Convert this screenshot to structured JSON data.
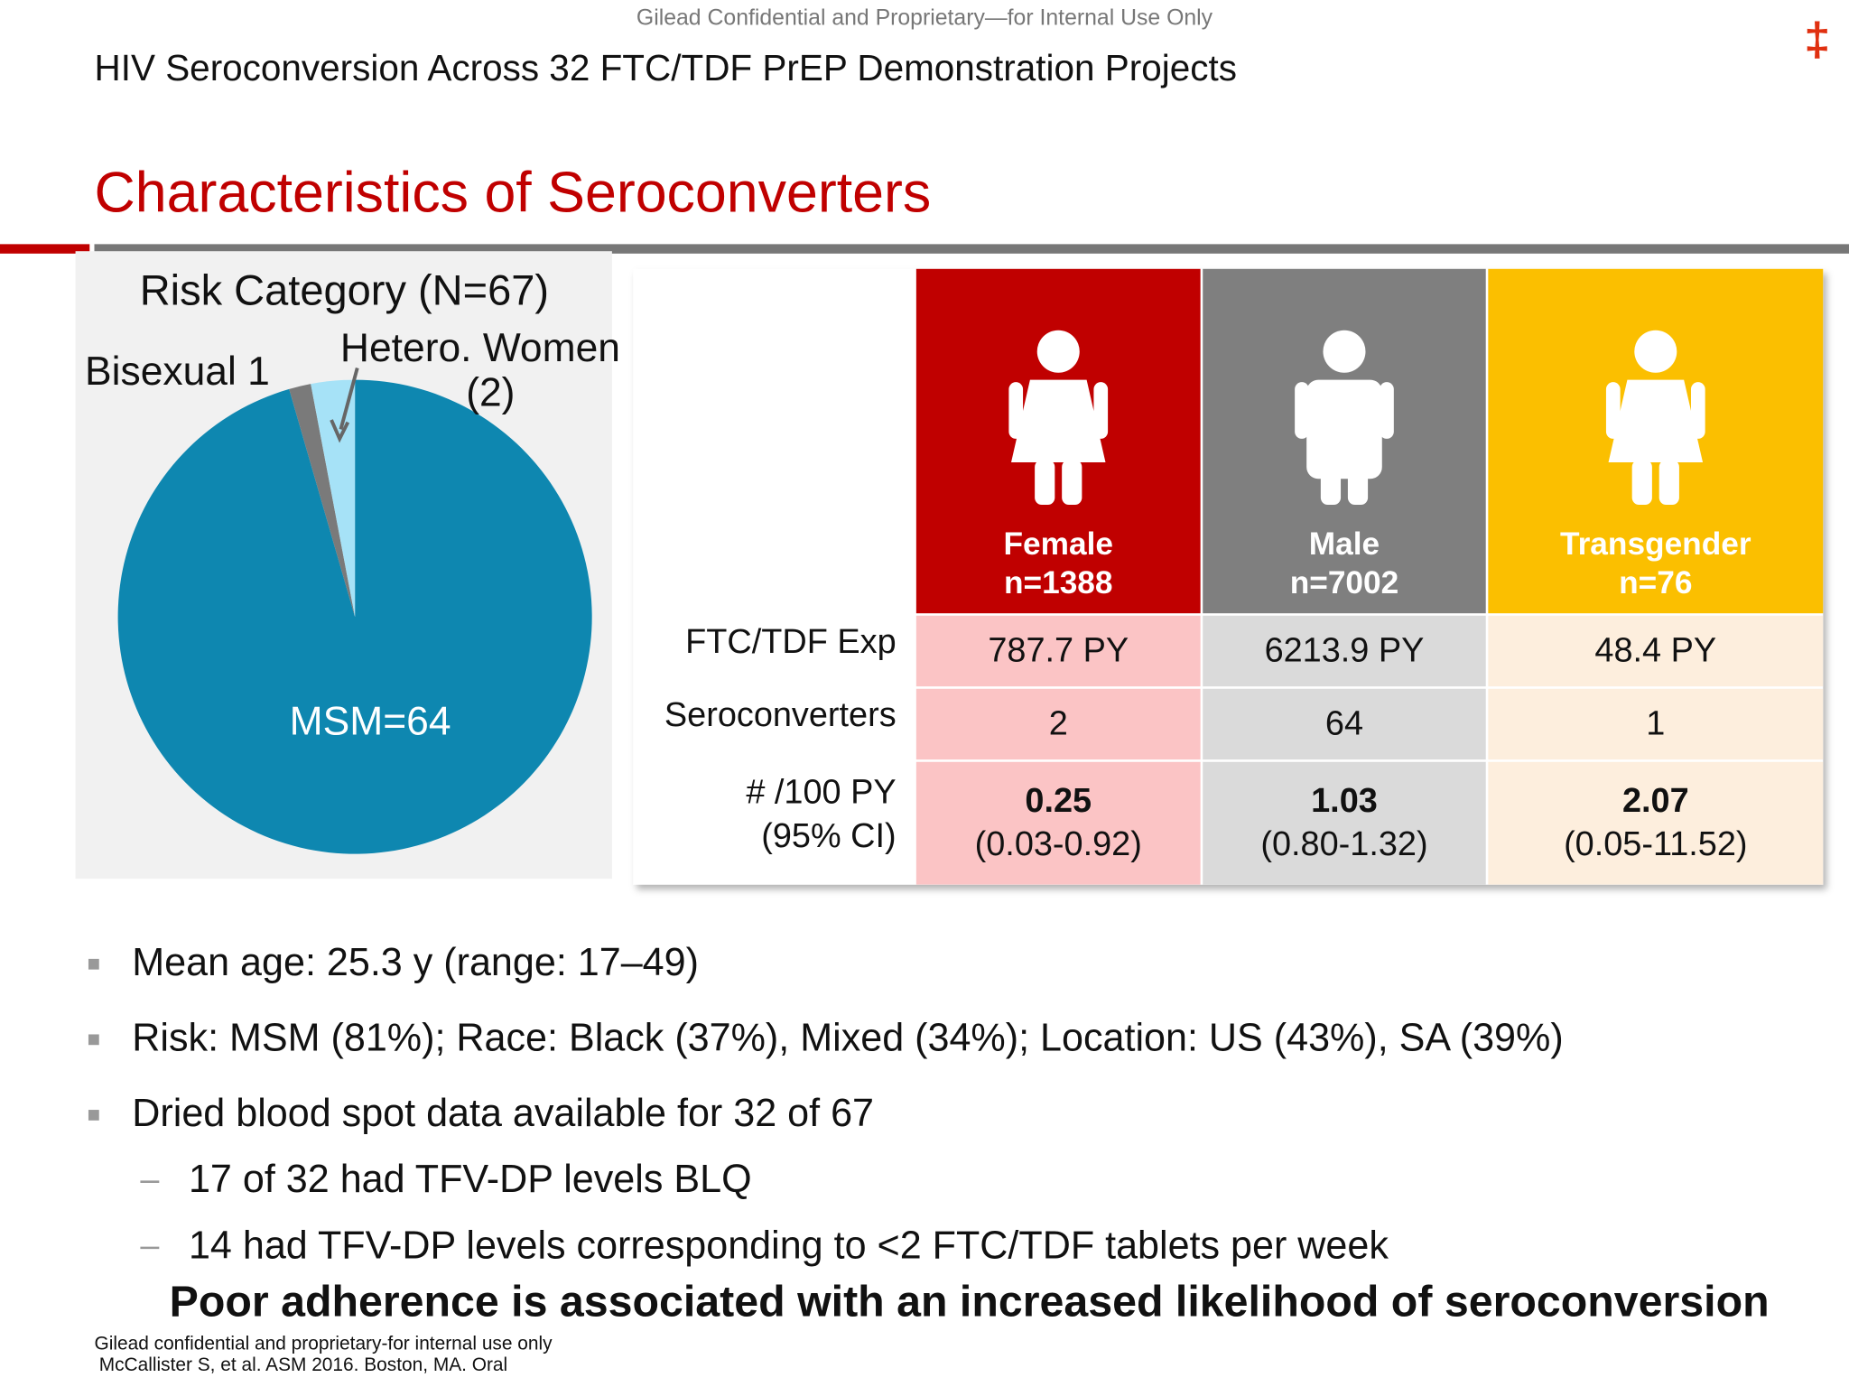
{
  "header": {
    "confidential": "Gilead Confidential and Proprietary—for Internal Use Only",
    "title": "HIV Seroconversion Across 32 FTC/TDF PrEP Demonstration Projects",
    "logo": "‡",
    "heading": "Characteristics of Seroconverters"
  },
  "chart_data": {
    "type": "pie",
    "title": "Risk Category (N=67)",
    "categories": [
      "MSM=64",
      "Bisexual 1",
      "Hetero. Women (2)"
    ],
    "values": [
      64,
      1,
      2
    ],
    "colors": [
      "#0e87b0",
      "#7a7a7a",
      "#a6e2f7"
    ]
  },
  "table": {
    "columns": [
      {
        "name": "Female",
        "n": "n=1388",
        "color": "#c00000",
        "cell_color": "#fbc4c5"
      },
      {
        "name": "Male",
        "n": "n=7002",
        "color": "#7f7f7f",
        "cell_color": "#dadada"
      },
      {
        "name": "Transgender",
        "n": "n=76",
        "color": "#fbbf00",
        "cell_color": "#fdeedd"
      }
    ],
    "rows": [
      {
        "label": [
          "FTC/TDF Exp"
        ],
        "cells": [
          [
            "787.7 PY"
          ],
          [
            "6213.9 PY"
          ],
          [
            "48.4 PY"
          ]
        ]
      },
      {
        "label": [
          "Seroconverters"
        ],
        "cells": [
          [
            "2"
          ],
          [
            "64"
          ],
          [
            "1"
          ]
        ]
      },
      {
        "label": [
          "# /100 PY",
          "(95% CI)"
        ],
        "cells": [
          [
            "0.25",
            "(0.03-0.92)"
          ],
          [
            "1.03",
            "(0.80-1.32)"
          ],
          [
            "2.07",
            "(0.05-11.52)"
          ]
        ]
      }
    ]
  },
  "bullets": [
    {
      "text": "Mean age: 25.3 y (range: 17–49)",
      "sub": []
    },
    {
      "text": "Risk: MSM (81%); Race: Black (37%), Mixed (34%); Location: US (43%), SA (39%)",
      "sub": []
    },
    {
      "text": "Dried blood spot data available for 32 of 67",
      "sub": [
        "17 of 32 had TFV-DP levels BLQ",
        "14 had TFV-DP levels corresponding to <2 FTC/TDF tablets per week"
      ]
    }
  ],
  "conclusion": "Poor adherence is associated with an increased likelihood of seroconversion",
  "footer": [
    "Gilead confidential and proprietary-for internal use only",
    "McCallister S, et al. ASM 2016. Boston, MA. Oral"
  ]
}
